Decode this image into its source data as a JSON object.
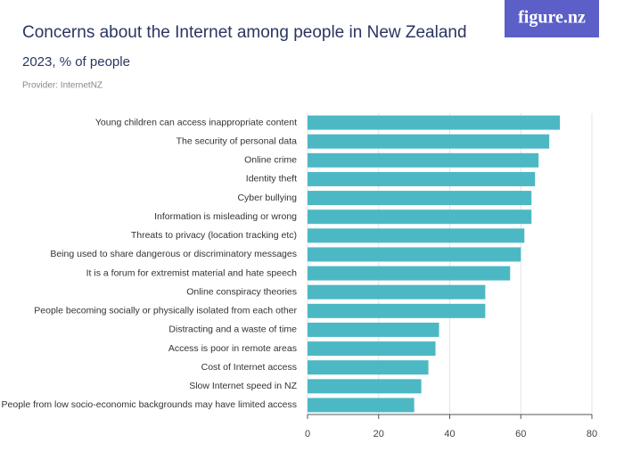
{
  "brand": "figure.nz",
  "chart_data": {
    "type": "bar",
    "orientation": "horizontal",
    "title": "Concerns about the Internet among people in New Zealand",
    "subtitle": "2023, % of people",
    "provider": "Provider: InternetNZ",
    "categories": [
      "Young children can access inappropriate content",
      "The security of personal data",
      "Online crime",
      "Identity theft",
      "Cyber bullying",
      "Information is misleading or wrong",
      "Threats to privacy (location tracking etc)",
      "Being used to share dangerous or discriminatory messages",
      "It is a forum for extremist material and hate speech",
      "Online conspiracy theories",
      "People becoming socially or physically isolated from each other",
      "Distracting and a waste of time",
      "Access is poor in remote areas",
      "Cost of Internet access",
      "Slow Internet speed in NZ",
      "People from low socio-economic backgrounds may have limited access"
    ],
    "values": [
      71,
      68,
      65,
      64,
      63,
      63,
      61,
      60,
      57,
      50,
      50,
      37,
      36,
      34,
      32,
      30
    ],
    "color": "#4cb8c4",
    "xlim": [
      0,
      80
    ],
    "xticks": [
      0,
      20,
      40,
      60,
      80
    ],
    "grid": true
  }
}
